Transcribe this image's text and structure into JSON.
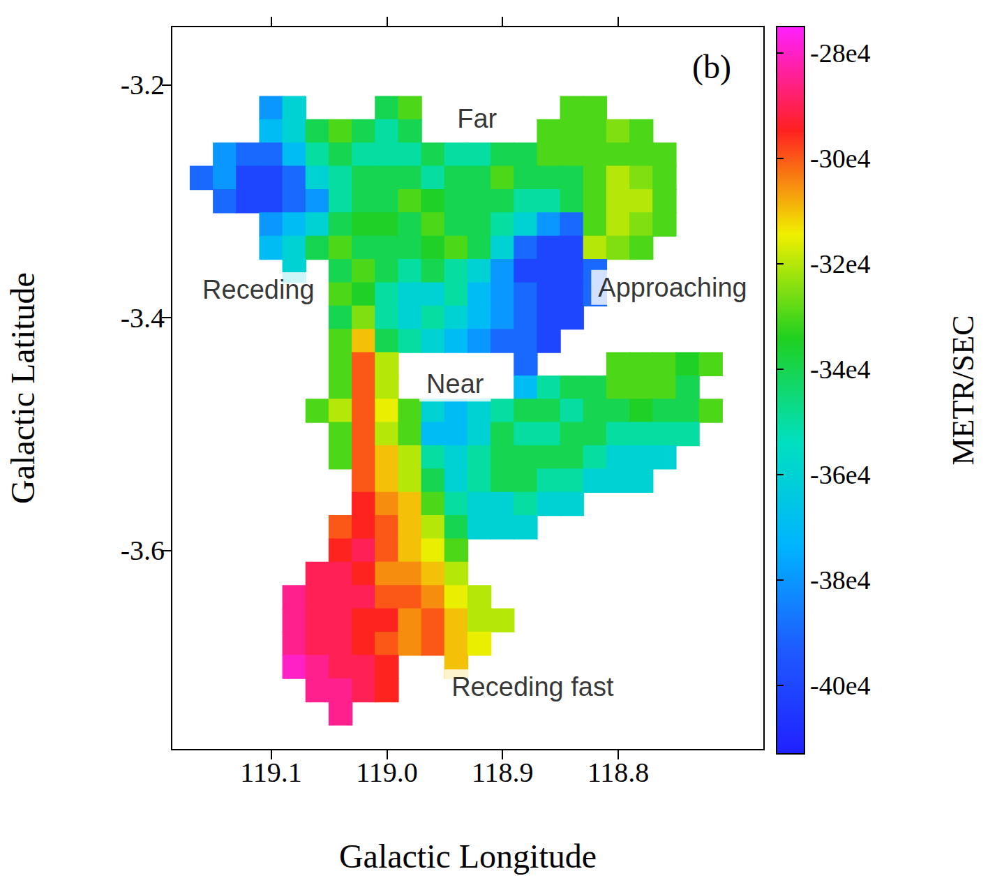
{
  "chart_data": {
    "type": "heatmap",
    "xlabel": "Galactic Longitude",
    "ylabel": "Galactic Latitude",
    "panel": "(b)",
    "xlim": [
      119.186,
      118.674
    ],
    "ylim": [
      -3.771,
      -3.15
    ],
    "xticks": [
      119.1,
      {
        "value": 119,
        "label": "119.0"
      },
      118.9,
      118.8
    ],
    "yticks": [
      -3.2,
      -3.4,
      -3.6
    ],
    "x": [
      119.16,
      119.14,
      119.12,
      119.1,
      119.08,
      119.06,
      119.04,
      119.02,
      119.0,
      118.98,
      118.96,
      118.94,
      118.92,
      118.9,
      118.88,
      118.86,
      118.84,
      118.82,
      118.8,
      118.78,
      118.76,
      118.74,
      118.72,
      118.7
    ],
    "y": [
      -3.22,
      -3.24,
      -3.26,
      -3.28,
      -3.3,
      -3.32,
      -3.34,
      -3.36,
      -3.38,
      -3.4,
      -3.42,
      -3.44,
      -3.46,
      -3.48,
      -3.5,
      -3.52,
      -3.54,
      -3.56,
      -3.58,
      -3.6,
      -3.62,
      -3.64,
      -3.66,
      -3.68,
      -3.7,
      -3.72,
      -3.74
    ],
    "values": [
      [
        null,
        null,
        null,
        -380000,
        -360000,
        null,
        null,
        null,
        -340000,
        -330000,
        null,
        null,
        null,
        null,
        null,
        null,
        -330000,
        -330000,
        null,
        null,
        null,
        null,
        null,
        null
      ],
      [
        null,
        null,
        null,
        -370000,
        -360000,
        -340000,
        -330000,
        -340000,
        -350000,
        -340000,
        null,
        null,
        null,
        null,
        null,
        -330000,
        -330000,
        -330000,
        -325000,
        -330000,
        null,
        null,
        null,
        null
      ],
      [
        null,
        -380000,
        -390000,
        -390000,
        -370000,
        -350000,
        -340000,
        -350000,
        -350000,
        -350000,
        -340000,
        -350000,
        -350000,
        -340000,
        -340000,
        -330000,
        -330000,
        -330000,
        -330000,
        -330000,
        -330000,
        null,
        null,
        null
      ],
      [
        -390000,
        -380000,
        -400000,
        -400000,
        -390000,
        -360000,
        -350000,
        -340000,
        -340000,
        -340000,
        -350000,
        -340000,
        -340000,
        -330000,
        -340000,
        -340000,
        -340000,
        -330000,
        -320000,
        -325000,
        -330000,
        null,
        null,
        null
      ],
      [
        null,
        -390000,
        -400000,
        -400000,
        -390000,
        -380000,
        -350000,
        -340000,
        -340000,
        -330000,
        -335000,
        -340000,
        -340000,
        -340000,
        -350000,
        -350000,
        -340000,
        -330000,
        -320000,
        -320000,
        -330000,
        null,
        null,
        null
      ],
      [
        null,
        null,
        null,
        -380000,
        -370000,
        -360000,
        -340000,
        -335000,
        -335000,
        -340000,
        -330000,
        -340000,
        -340000,
        -350000,
        -360000,
        -380000,
        -390000,
        -330000,
        -320000,
        -325000,
        -330000,
        null,
        null,
        null
      ],
      [
        null,
        null,
        null,
        -370000,
        -360000,
        -340000,
        -330000,
        -340000,
        -340000,
        -340000,
        -335000,
        -330000,
        -340000,
        -360000,
        -390000,
        -400000,
        -400000,
        -320000,
        -325000,
        -330000,
        null,
        null,
        null,
        null
      ],
      [
        null,
        null,
        null,
        null,
        -360000,
        null,
        -340000,
        -330000,
        -340000,
        -350000,
        -340000,
        -350000,
        -360000,
        -380000,
        -400000,
        -400000,
        -400000,
        -390000,
        null,
        null,
        null,
        null,
        null,
        null
      ],
      [
        null,
        null,
        null,
        null,
        null,
        null,
        -330000,
        -335000,
        -350000,
        -360000,
        -360000,
        -350000,
        -370000,
        -380000,
        -390000,
        -400000,
        -400000,
        -390000,
        null,
        null,
        null,
        null,
        null,
        null
      ],
      [
        null,
        null,
        null,
        null,
        null,
        null,
        -340000,
        -325000,
        -350000,
        -360000,
        -350000,
        -360000,
        -370000,
        -380000,
        -390000,
        -400000,
        -400000,
        null,
        null,
        null,
        null,
        null,
        null,
        null
      ],
      [
        null,
        null,
        null,
        null,
        null,
        null,
        -330000,
        -310000,
        -340000,
        -350000,
        -360000,
        -370000,
        -380000,
        -390000,
        -390000,
        -400000,
        null,
        null,
        null,
        null,
        null,
        null,
        null,
        null
      ],
      [
        null,
        null,
        null,
        null,
        null,
        null,
        -330000,
        -300000,
        -320000,
        null,
        null,
        null,
        null,
        null,
        -390000,
        null,
        null,
        null,
        -330000,
        -330000,
        -330000,
        -335000,
        -330000,
        null
      ],
      [
        null,
        null,
        null,
        null,
        null,
        null,
        -330000,
        -300000,
        -320000,
        null,
        null,
        null,
        null,
        null,
        -370000,
        -350000,
        -340000,
        -340000,
        -330000,
        -330000,
        -330000,
        -340000,
        null,
        null
      ],
      [
        null,
        null,
        null,
        null,
        null,
        -330000,
        -320000,
        -300000,
        -315000,
        -330000,
        -360000,
        -370000,
        -360000,
        -350000,
        -340000,
        -340000,
        -350000,
        -340000,
        -340000,
        -335000,
        -340000,
        -340000,
        -330000,
        null
      ],
      [
        null,
        null,
        null,
        null,
        null,
        null,
        -330000,
        -300000,
        -320000,
        -330000,
        -370000,
        -370000,
        -360000,
        -340000,
        -350000,
        -350000,
        -340000,
        -340000,
        -350000,
        -350000,
        -350000,
        -350000,
        null,
        null
      ],
      [
        null,
        null,
        null,
        null,
        null,
        null,
        -330000,
        -300000,
        -310000,
        -320000,
        -350000,
        -360000,
        -350000,
        -340000,
        -340000,
        -340000,
        -340000,
        -350000,
        -360000,
        -360000,
        -360000,
        null,
        null,
        null
      ],
      [
        null,
        null,
        null,
        null,
        null,
        null,
        null,
        -300000,
        -310000,
        -320000,
        -340000,
        -360000,
        -350000,
        -340000,
        -340000,
        -350000,
        -350000,
        -360000,
        -360000,
        -360000,
        null,
        null,
        null,
        null
      ],
      [
        null,
        null,
        null,
        null,
        null,
        null,
        null,
        -295000,
        -305000,
        -310000,
        -330000,
        -350000,
        -360000,
        -360000,
        -350000,
        -360000,
        -360000,
        null,
        null,
        null,
        null,
        null,
        null,
        null
      ],
      [
        null,
        null,
        null,
        null,
        null,
        null,
        -300000,
        -295000,
        -300000,
        -310000,
        -320000,
        -340000,
        -360000,
        -360000,
        -360000,
        null,
        null,
        null,
        null,
        null,
        null,
        null,
        null,
        null
      ],
      [
        null,
        null,
        null,
        null,
        null,
        null,
        -295000,
        -290000,
        -300000,
        -310000,
        -315000,
        -330000,
        null,
        null,
        null,
        null,
        null,
        null,
        null,
        null,
        null,
        null,
        null,
        null
      ],
      [
        null,
        null,
        null,
        null,
        null,
        -290000,
        -290000,
        -295000,
        -305000,
        -305000,
        -310000,
        -320000,
        null,
        null,
        null,
        null,
        null,
        null,
        null,
        null,
        null,
        null,
        null,
        null
      ],
      [
        null,
        null,
        null,
        null,
        -285000,
        -290000,
        -290000,
        -290000,
        -300000,
        -300000,
        -305000,
        -315000,
        -320000,
        null,
        null,
        null,
        null,
        null,
        null,
        null,
        null,
        null,
        null,
        null
      ],
      [
        null,
        null,
        null,
        null,
        -285000,
        -290000,
        -290000,
        -295000,
        -295000,
        -305000,
        -300000,
        -310000,
        -320000,
        -320000,
        null,
        null,
        null,
        null,
        null,
        null,
        null,
        null,
        null,
        null
      ],
      [
        null,
        null,
        null,
        null,
        -285000,
        -290000,
        -290000,
        -295000,
        -300000,
        -305000,
        -300000,
        -310000,
        -315000,
        null,
        null,
        null,
        null,
        null,
        null,
        null,
        null,
        null,
        null,
        null
      ],
      [
        null,
        null,
        null,
        null,
        -280000,
        -285000,
        -290000,
        -290000,
        -295000,
        null,
        null,
        -310000,
        null,
        null,
        null,
        null,
        null,
        null,
        null,
        null,
        null,
        null,
        null,
        null
      ],
      [
        null,
        null,
        null,
        null,
        null,
        -285000,
        -285000,
        -290000,
        -295000,
        null,
        null,
        null,
        null,
        null,
        null,
        null,
        null,
        null,
        null,
        null,
        null,
        null,
        null,
        null
      ],
      [
        null,
        null,
        null,
        null,
        null,
        null,
        -285000,
        null,
        null,
        null,
        null,
        null,
        null,
        null,
        null,
        null,
        null,
        null,
        null,
        null,
        null,
        null,
        null,
        null
      ]
    ],
    "colorbar": {
      "label": "METR/SEC",
      "range": [
        -413000,
        -275000
      ],
      "ticks": [
        {
          "value": -280000,
          "label": "-28e4"
        },
        {
          "value": -300000,
          "label": "-30e4"
        },
        {
          "value": -320000,
          "label": "-32e4"
        },
        {
          "value": -340000,
          "label": "-34e4"
        },
        {
          "value": -360000,
          "label": "-36e4"
        },
        {
          "value": -380000,
          "label": "-38e4"
        },
        {
          "value": -400000,
          "label": "-40e4"
        }
      ]
    },
    "annotations": [
      {
        "text": "Far",
        "x": 118.922,
        "y": -3.229
      },
      {
        "text": "Receding",
        "x": 119.111,
        "y": -3.376
      },
      {
        "text": "Approaching",
        "x": 118.753,
        "y": -3.374
      },
      {
        "text": "Near",
        "x": 118.941,
        "y": -3.457
      },
      {
        "text": "Receding fast",
        "x": 118.874,
        "y": -3.717
      }
    ]
  }
}
